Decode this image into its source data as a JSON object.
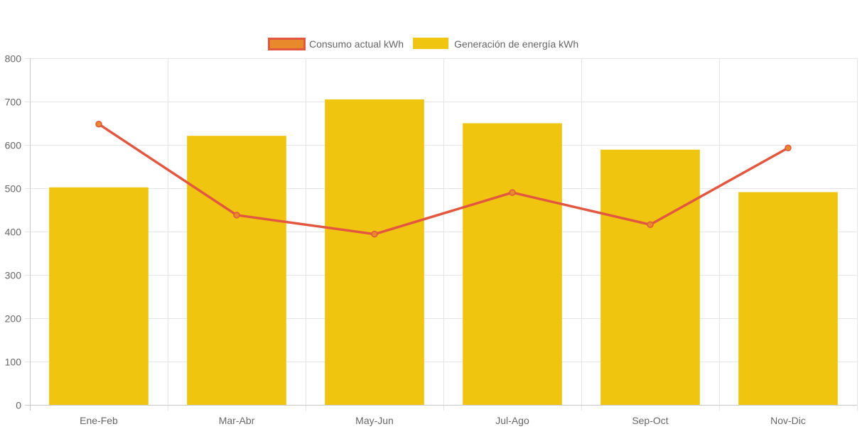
{
  "chart_data": {
    "type": "bar",
    "categories": [
      "Ene-Feb",
      "Mar-Abr",
      "May-Jun",
      "Jul-Ago",
      "Sep-Oct",
      "Nov-Dic"
    ],
    "series": [
      {
        "name": "Consumo actual kWh",
        "type": "line",
        "values": [
          648,
          438,
          394,
          490,
          416,
          593
        ],
        "color": "#e25740",
        "fill": "#e8892b"
      },
      {
        "name": "Generación de energía kWh",
        "type": "bar",
        "values": [
          502,
          621,
          705,
          650,
          589,
          491
        ],
        "color": "#f0c50f"
      }
    ],
    "ylim": [
      0,
      800
    ],
    "yticks": [
      "0",
      "100",
      "200",
      "300",
      "400",
      "500",
      "600",
      "700",
      "800"
    ],
    "grid": true,
    "legend_position": "top"
  }
}
